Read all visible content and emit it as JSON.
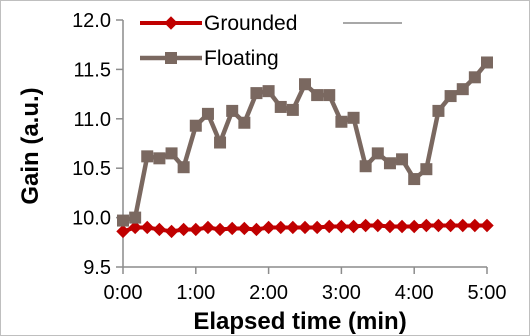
{
  "chart_data": {
    "type": "line",
    "xlabel": "Elapsed time (min)",
    "ylabel": "Gain (a.u.)",
    "xlim": [
      0,
      5
    ],
    "ylim": [
      9.5,
      12.0
    ],
    "x_ticks": [
      0,
      1,
      2,
      3,
      4,
      5
    ],
    "x_tick_labels": [
      "0:00",
      "1:00",
      "2:00",
      "3:00",
      "4:00",
      "5:00"
    ],
    "y_ticks": [
      9.5,
      10.0,
      10.5,
      11.0,
      11.5,
      12.0
    ],
    "y_tick_labels": [
      "9.5",
      "10.0",
      "10.5",
      "11.0",
      "11.5",
      "12.0"
    ],
    "grid": false,
    "legend_position": "top",
    "series": [
      {
        "name": "Grounded",
        "color": "#C00000",
        "marker": "diamond",
        "x": [
          0,
          0.167,
          0.333,
          0.5,
          0.667,
          0.833,
          1,
          1.167,
          1.333,
          1.5,
          1.667,
          1.833,
          2,
          2.167,
          2.333,
          2.5,
          2.667,
          2.833,
          3,
          3.167,
          3.333,
          3.5,
          3.667,
          3.833,
          4,
          4.167,
          4.333,
          4.5,
          4.667,
          4.833,
          5
        ],
        "values": [
          9.86,
          9.9,
          9.9,
          9.88,
          9.86,
          9.88,
          9.88,
          9.9,
          9.88,
          9.89,
          9.89,
          9.88,
          9.9,
          9.9,
          9.9,
          9.9,
          9.9,
          9.91,
          9.91,
          9.91,
          9.92,
          9.92,
          9.91,
          9.91,
          9.91,
          9.92,
          9.92,
          9.92,
          9.92,
          9.92,
          9.92
        ]
      },
      {
        "name": "Floating",
        "color": "#7A6860",
        "marker": "square",
        "x": [
          0,
          0.167,
          0.333,
          0.5,
          0.667,
          0.833,
          1,
          1.167,
          1.333,
          1.5,
          1.667,
          1.833,
          2,
          2.167,
          2.333,
          2.5,
          2.667,
          2.833,
          3,
          3.167,
          3.333,
          3.5,
          3.667,
          3.833,
          4,
          4.167,
          4.333,
          4.5,
          4.667,
          4.833,
          5
        ],
        "values": [
          9.97,
          10.0,
          10.62,
          10.6,
          10.65,
          10.51,
          10.93,
          11.05,
          10.76,
          11.08,
          10.96,
          11.26,
          11.28,
          11.12,
          11.09,
          11.35,
          11.24,
          11.24,
          10.97,
          11.01,
          10.52,
          10.65,
          10.55,
          10.59,
          10.39,
          10.49,
          11.08,
          11.23,
          11.3,
          11.42,
          11.57
        ]
      }
    ]
  }
}
